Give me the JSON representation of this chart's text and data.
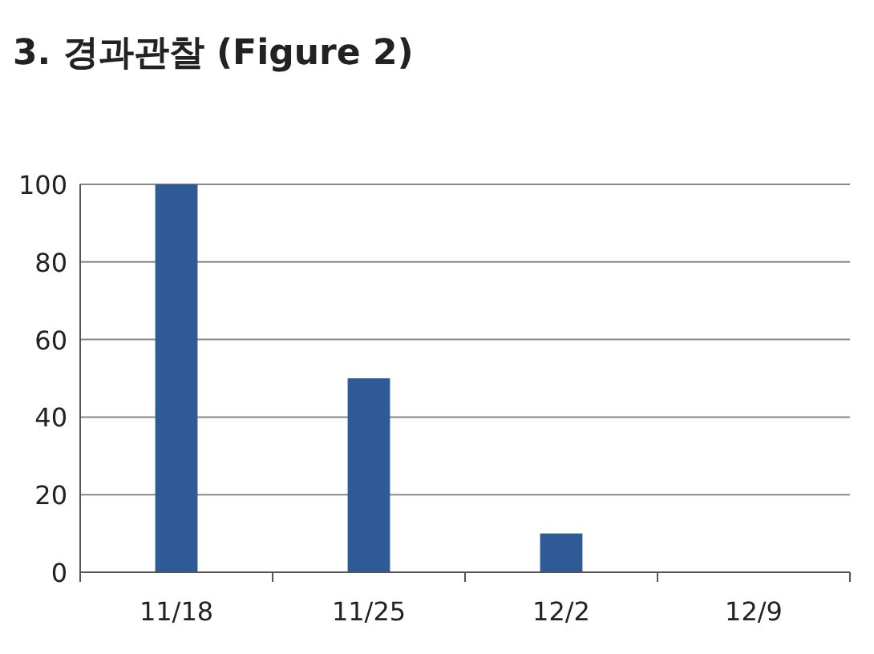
{
  "chart_data": {
    "type": "bar",
    "title": "3. 경과관찰 (Figure 2)",
    "categories": [
      "11/18",
      "11/25",
      "12/2",
      "12/9"
    ],
    "values": [
      100,
      50,
      10,
      0
    ],
    "color": "#2e5b95",
    "ylim": [
      0,
      100
    ],
    "yticks": [
      0,
      20,
      40,
      60,
      80,
      100
    ],
    "grid": "y"
  }
}
